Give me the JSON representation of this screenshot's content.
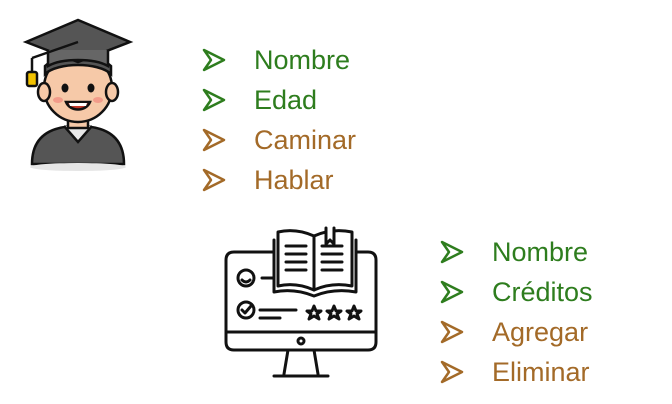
{
  "colors": {
    "attribute": "#2e7d1e",
    "method": "#a36a28",
    "outline": "#111111"
  },
  "student": {
    "icon": "graduate-student-icon",
    "attributes": [
      "Nombre",
      "Edad"
    ],
    "methods": [
      "Caminar",
      "Hablar"
    ]
  },
  "course": {
    "icon": "online-course-computer-icon",
    "attributes": [
      "Nombre",
      "Créditos"
    ],
    "methods": [
      "Agregar",
      "Eliminar"
    ]
  }
}
